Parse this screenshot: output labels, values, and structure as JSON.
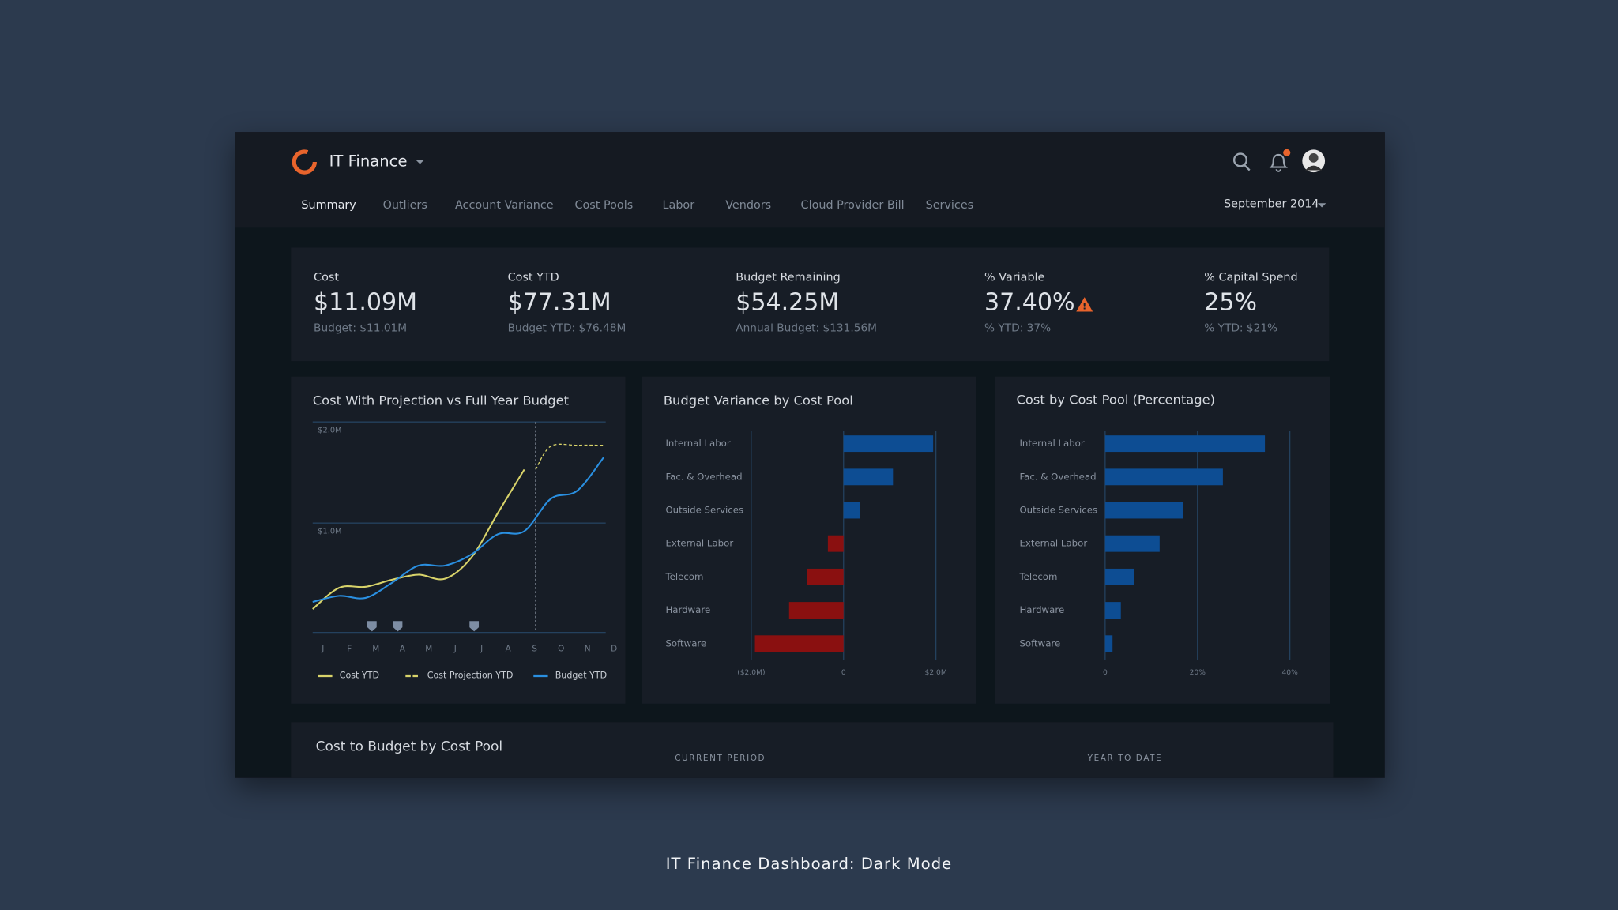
{
  "header": {
    "app_name": "IT Finance",
    "nav": [
      "Summary",
      "Outliers",
      "Account Variance",
      "Cost Pools",
      "Labor",
      "Vendors",
      "Cloud Provider Bill",
      "Services"
    ],
    "period": "September 2014"
  },
  "kpis": [
    {
      "label": "Cost",
      "value": "$11.09M",
      "sub": "Budget: $11.01M"
    },
    {
      "label": "Cost YTD",
      "value": "$77.31M",
      "sub": "Budget YTD: $76.48M"
    },
    {
      "label": "Budget Remaining",
      "value": "$54.25M",
      "sub": "Annual Budget: $131.56M"
    },
    {
      "label": "% Variable",
      "value": "37.40%",
      "sub": "% YTD: 37%"
    },
    {
      "label": "% Capital Spend",
      "value": "25%",
      "sub": "% YTD: $21%"
    }
  ],
  "chart_data": [
    {
      "type": "line",
      "title": "Cost With Projection vs Full Year Budget",
      "categories": [
        "J",
        "F",
        "M",
        "A",
        "M",
        "J",
        "J",
        "A",
        "S",
        "O",
        "N",
        "D"
      ],
      "series": [
        {
          "name": "Cost YTD",
          "color": "#d8d36a",
          "values": [
            0.15,
            0.36,
            0.37,
            0.44,
            0.49,
            0.45,
            0.66,
            1.1,
            1.53,
            null,
            null,
            null
          ]
        },
        {
          "name": "Cost Projection YTD",
          "color": "#d8d36a",
          "dashed": true,
          "values": [
            null,
            null,
            null,
            null,
            null,
            null,
            null,
            null,
            1.53,
            1.76,
            1.77,
            1.77
          ]
        },
        {
          "name": "Budget YTD",
          "color": "#2a8fe0",
          "values": [
            0.22,
            0.28,
            0.26,
            0.41,
            0.58,
            0.58,
            0.69,
            0.89,
            0.92,
            1.24,
            1.32,
            1.65
          ]
        }
      ],
      "ylim": [
        0,
        2.0
      ],
      "yticks": [
        {
          "value": 1.0,
          "label": "$1.0M"
        },
        {
          "value": 2.0,
          "label": "$2.0M"
        }
      ],
      "grid": true
    },
    {
      "type": "bar",
      "orientation": "horizontal",
      "title": "Budget Variance by Cost Pool",
      "categories": [
        "Internal Labor",
        "Fac. & Overhead",
        "Outside Services",
        "External Labor",
        "Telecom",
        "Hardware",
        "Software"
      ],
      "values": [
        1.94,
        1.07,
        0.36,
        -0.34,
        -0.8,
        -1.18,
        -1.92
      ],
      "color": "#0d4d93",
      "negative_color": "#8a1010",
      "xlim": [
        -2.0,
        2.0
      ],
      "xticks": [
        {
          "value": -2.0,
          "label": "($2.0M)"
        },
        0,
        {
          "value": 2.0,
          "label": "$2.0M"
        }
      ],
      "grid": true
    },
    {
      "type": "bar",
      "orientation": "horizontal",
      "title": "Cost by Cost Pool (Percentage)",
      "categories": [
        "Internal Labor",
        "Fac. & Overhead",
        "Outside Services",
        "External Labor",
        "Telecom",
        "Hardware",
        "Software"
      ],
      "values": [
        34.6,
        25.5,
        16.8,
        11.8,
        6.3,
        3.4,
        1.6
      ],
      "color": "#0d4d93",
      "xlim": [
        0,
        40
      ],
      "xticks": [
        0,
        {
          "value": 20,
          "label": "20%"
        },
        {
          "value": 40,
          "label": "40%"
        }
      ],
      "grid": true
    }
  ],
  "table": {
    "title": "Cost to Budget by Cost Pool",
    "columns": [
      "CURRENT PERIOD",
      "YEAR TO DATE"
    ]
  },
  "caption": "IT Finance Dashboard: Dark Mode"
}
